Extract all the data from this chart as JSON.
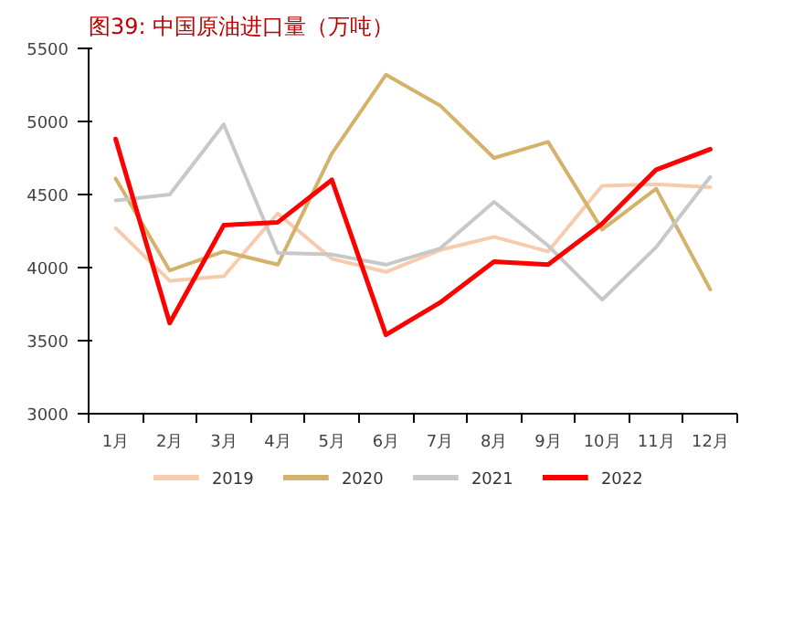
{
  "chart_data": {
    "type": "line",
    "title": "图39:  中国原油进口量（万吨）",
    "categories": [
      "1月",
      "2月",
      "3月",
      "4月",
      "5月",
      "6月",
      "7月",
      "8月",
      "9月",
      "10月",
      "11月",
      "12月"
    ],
    "ylim": [
      3000,
      5500
    ],
    "yticks": [
      3000,
      3500,
      4000,
      4500,
      5000,
      5500
    ],
    "grid": false,
    "legend": "bottom",
    "marker": "none",
    "line_style": "solid",
    "series": [
      {
        "name": "2019",
        "color": "#f8cbad",
        "values": [
          4270,
          3910,
          3940,
          4370,
          4060,
          3970,
          4120,
          4210,
          4110,
          4560,
          4570,
          4550
        ]
      },
      {
        "name": "2020",
        "color": "#d4b26a",
        "values": [
          4610,
          3980,
          4110,
          4020,
          4780,
          5320,
          5110,
          4750,
          4860,
          4260,
          4540,
          3850
        ]
      },
      {
        "name": "2021",
        "color": "#c8c8c8",
        "values": [
          4460,
          4500,
          4980,
          4100,
          4090,
          4020,
          4130,
          4450,
          4150,
          3780,
          4140,
          4620
        ]
      },
      {
        "name": "2022",
        "color": "#ff0000",
        "values": [
          4880,
          3620,
          4290,
          4310,
          4600,
          3540,
          3760,
          4040,
          4020,
          4300,
          4670,
          4810
        ]
      }
    ]
  }
}
